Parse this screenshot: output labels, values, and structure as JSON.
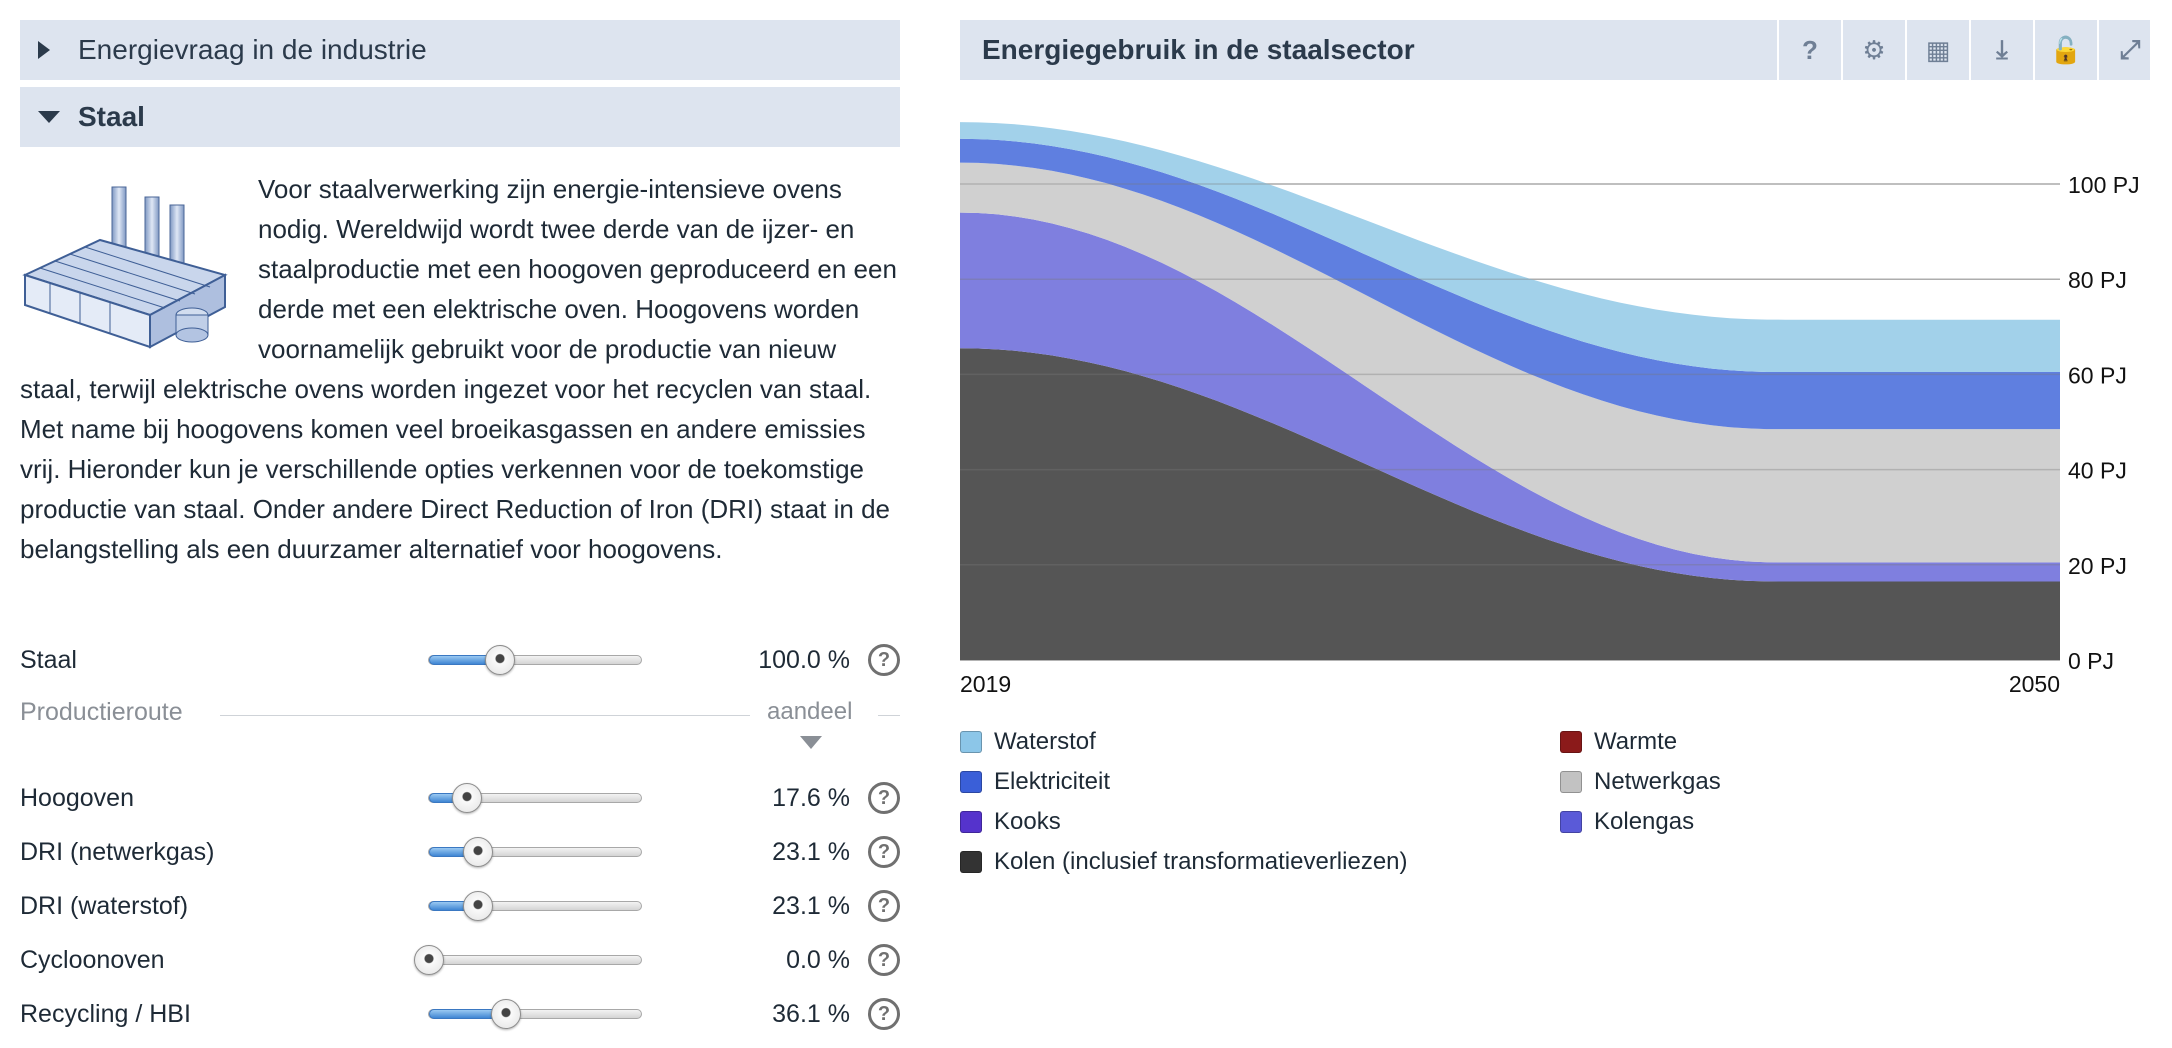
{
  "left_panel": {
    "accordion_collapsed_title": "Energievraag in de industrie",
    "accordion_open_title": "Staal",
    "intro_text": "Voor staalverwerking zijn energie-intensieve ovens nodig. Wereldwijd wordt twee derde van de ijzer- en staalproductie met een hoogoven geproduceerd en een derde met een elektrische oven. Hoogovens worden voornamelijk gebruikt voor de productie van nieuw staal, terwijl elektrische ovens worden ingezet voor het recyclen van staal. Met name bij hoogovens komen veel broeikasgassen en andere emissies vrij. Hieronder kun je verschillende opties verkennen voor de toekomstige productie van staal. Onder andere Direct Reduction of Iron (DRI) staat in de belangstelling als een duurzamer alternatief voor hoogovens.",
    "main_slider": {
      "label": "Staal",
      "value_text": "100.0 %",
      "level": 0.33
    },
    "section": {
      "title": "Productieroute",
      "column": "aandeel"
    },
    "sliders": [
      {
        "label": "Hoogoven",
        "value_text": "17.6 %",
        "level": 0.176
      },
      {
        "label": "DRI (netwerkgas)",
        "value_text": "23.1 %",
        "level": 0.231
      },
      {
        "label": "DRI (waterstof)",
        "value_text": "23.1 %",
        "level": 0.231
      },
      {
        "label": "Cycloonoven",
        "value_text": "0.0 %",
        "level": 0.0
      },
      {
        "label": "Recycling / HBI",
        "value_text": "36.1 %",
        "level": 0.361
      }
    ],
    "help_symbol": "?"
  },
  "chart_panel": {
    "title": "Energiegebruik in de staalsector",
    "toolbar": [
      {
        "icon": "help-icon",
        "glyph": "?"
      },
      {
        "icon": "settings-icon",
        "glyph": "⚙"
      },
      {
        "icon": "table-icon",
        "glyph": "▦"
      },
      {
        "icon": "download-icon",
        "glyph": "⤓"
      },
      {
        "icon": "unlock-icon",
        "glyph": "🔓"
      },
      {
        "icon": "fullscreen-icon",
        "glyph": "⤢"
      }
    ]
  },
  "chart_data": {
    "type": "area",
    "stacked": true,
    "x": [
      2019,
      2050
    ],
    "x_tick_labels": [
      "2019",
      "2050"
    ],
    "y_unit": "PJ",
    "y_ticks": [
      0,
      20,
      40,
      60,
      80,
      100
    ],
    "y_tick_labels": [
      "0 PJ",
      "20 PJ",
      "40 PJ",
      "60 PJ",
      "80 PJ",
      "100 PJ"
    ],
    "ylim": [
      0,
      110
    ],
    "grid": true,
    "series": [
      {
        "name": "Kolen (inclusief transformatieverliezen)",
        "color": "#555555",
        "values": [
          65.5,
          16.5
        ]
      },
      {
        "name": "Kolengas",
        "color": "#7f7fdf",
        "values": [
          28.5,
          4.0
        ]
      },
      {
        "name": "Netwerkgas",
        "color": "#d0d0d0",
        "values": [
          10.5,
          28.0
        ]
      },
      {
        "name": "Elektriciteit",
        "color": "#5f7fe0",
        "values": [
          5.0,
          12.0
        ]
      },
      {
        "name": "Waterstof",
        "color": "#a2d1ea",
        "values": [
          3.5,
          11.0
        ]
      },
      {
        "name": "Warmte",
        "color": "#8b1a1a",
        "values": [
          0,
          0
        ]
      },
      {
        "name": "Kooks",
        "color": "#5533cc",
        "values": [
          0,
          0
        ]
      }
    ],
    "legend": [
      {
        "name": "Waterstof",
        "color": "#8cc6e8"
      },
      {
        "name": "Warmte",
        "color": "#8b1a1a"
      },
      {
        "name": "Elektriciteit",
        "color": "#3a5fd8"
      },
      {
        "name": "Netwerkgas",
        "color": "#c2c2c2"
      },
      {
        "name": "Kooks",
        "color": "#5533cc"
      },
      {
        "name": "Kolengas",
        "color": "#5a5ad8"
      },
      {
        "name": "Kolen (inclusief transformatieverliezen)",
        "color": "#333333"
      }
    ],
    "legend_placement": "bottom"
  }
}
